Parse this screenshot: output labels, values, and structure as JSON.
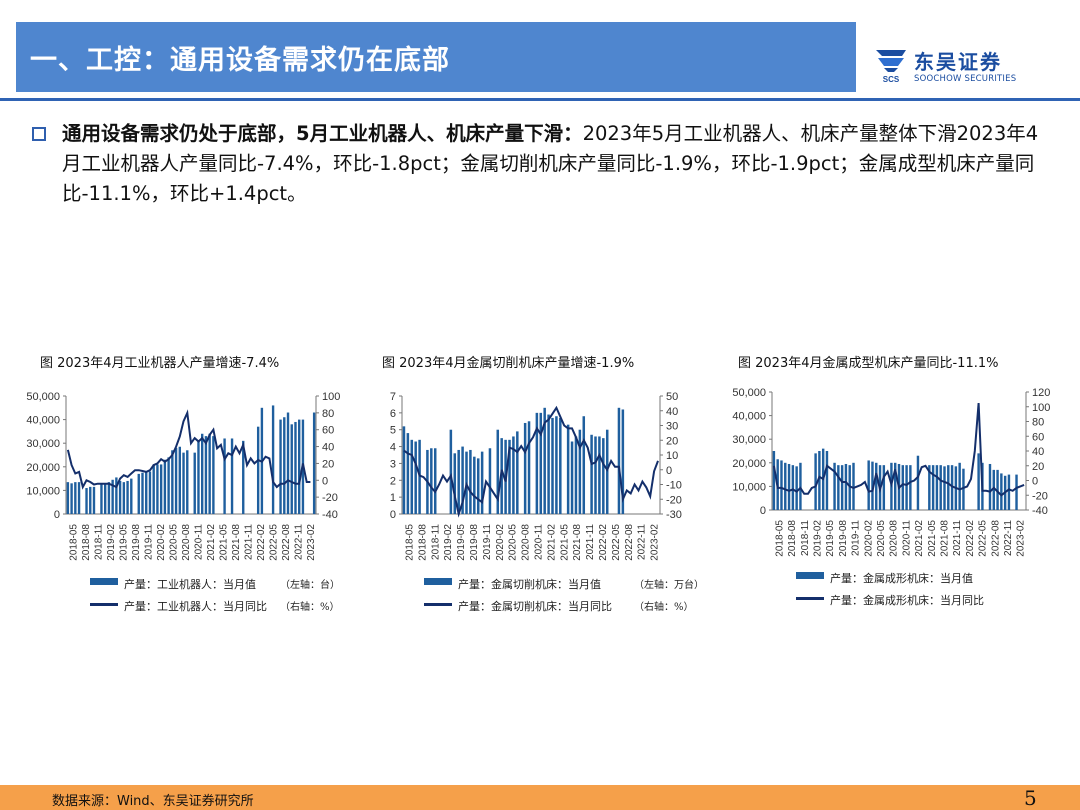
{
  "header": {
    "title": "一、工控：通用设备需求仍在底部",
    "logo_cn": "东吴证券",
    "logo_en": "SOOCHOW SECURITIES",
    "logo_mark": "SCS"
  },
  "bullet": {
    "bold": "通用设备需求仍处于底部，5月工业机器人、机床产量下滑：",
    "text": "2023年5月工业机器人、机床产量整体下滑2023年4月工业机器人产量同比-7.4%，环比-1.8pct；金属切削机床产量同比-1.9%，环比-1.9pct；金属成型机床产量同比-11.1%，环比+1.4pct。"
  },
  "footer": {
    "source": "数据来源：Wind、东吴证券研究所",
    "page": "5"
  },
  "colors": {
    "bar": "#1f5f9e",
    "line": "#142f6b",
    "title_bg": "#4f86cf",
    "footer_bg": "#f5a04a"
  },
  "chart_data": [
    {
      "type": "bar",
      "title": "图  2023年4月工业机器人产量增速-7.4%",
      "x_tick_labels": [
        "2018-05",
        "2018-08",
        "2018-11",
        "2019-02",
        "2019-05",
        "2019-08",
        "2019-11",
        "2020-02",
        "2020-05",
        "2020-08",
        "2020-11",
        "2021-02",
        "2021-05",
        "2021-08",
        "2021-11",
        "2022-02",
        "2022-05",
        "2022-08",
        "2022-11",
        "2023-02"
      ],
      "y_left": {
        "ticks": [
          "50,000",
          "40,000",
          "30,000",
          "20,000",
          "10,000",
          "0"
        ],
        "lim": [
          0,
          50000
        ]
      },
      "y_right": {
        "ticks": [
          "100",
          "80",
          "60",
          "40",
          "20",
          "0",
          "-20",
          "-40"
        ],
        "lim": [
          -40,
          100
        ]
      },
      "series": [
        {
          "name": "产量：工业机器人：当月值",
          "kind": "bar",
          "values": [
            13500,
            13000,
            13500,
            13500,
            null,
            11000,
            11500,
            11500,
            null,
            13000,
            13000,
            13500,
            14500,
            15500,
            14000,
            13500,
            14000,
            15000,
            null,
            17000,
            17500,
            18000,
            18000,
            21000,
            21000,
            21000,
            23000,
            24000,
            27000,
            28000,
            28500,
            26000,
            27000,
            null,
            26000,
            31000,
            34000,
            33000,
            34000,
            33000,
            null,
            null,
            32000,
            null,
            32000,
            null,
            null,
            31000,
            null,
            null,
            null,
            37000,
            45000,
            null,
            null,
            46000,
            null,
            40000,
            41000,
            43000,
            38000,
            39000,
            40000,
            40000,
            null,
            null,
            43000
          ]
        },
        {
          "name": "产量：工业机器人：当月同比",
          "kind": "line",
          "values": [
            36,
            18,
            8,
            10,
            -8,
            0,
            -2,
            -5,
            -4,
            -4,
            -4,
            -4,
            -6,
            -8,
            2,
            6,
            4,
            8,
            12,
            12,
            11,
            10,
            12,
            18,
            20,
            25,
            22,
            25,
            30,
            40,
            52,
            70,
            80,
            44,
            50,
            46,
            50,
            44,
            54,
            60,
            38,
            42,
            25,
            32,
            30,
            40,
            32,
            42,
            18,
            26,
            20,
            24,
            22,
            28,
            26,
            -2,
            -8,
            -4,
            -4,
            0,
            -2,
            -4,
            -4,
            20,
            -2,
            -2
          ]
        }
      ],
      "legend": [
        "产量：工业机器人：当月值",
        "产量：工业机器人：当月同比"
      ],
      "legend_notes": [
        "（左轴：台）",
        "（右轴：%）"
      ]
    },
    {
      "type": "bar",
      "title": "图  2023年4月金属切削机床产量增速-1.9%",
      "x_tick_labels": [
        "2018-05",
        "2018-08",
        "2018-11",
        "2019-02",
        "2019-05",
        "2019-08",
        "2019-11",
        "2020-02",
        "2020-05",
        "2020-08",
        "2020-11",
        "2021-02",
        "2021-05",
        "2021-08",
        "2021-11",
        "2022-02",
        "2022-05",
        "2022-08",
        "2022-11",
        "2023-02"
      ],
      "y_left": {
        "ticks": [
          "7",
          "6",
          "5",
          "4",
          "3",
          "2",
          "1",
          "0"
        ],
        "lim": [
          0,
          7
        ]
      },
      "y_right": {
        "ticks": [
          "50",
          "40",
          "30",
          "20",
          "10",
          "0",
          "-10",
          "-20",
          "-30"
        ],
        "lim": [
          -30,
          50
        ]
      },
      "series": [
        {
          "name": "产量：金属切削机床：当月值",
          "kind": "bar",
          "values": [
            5.2,
            4.8,
            4.4,
            4.3,
            4.4,
            null,
            3.8,
            3.9,
            3.9,
            null,
            null,
            null,
            5.0,
            3.6,
            3.8,
            4.0,
            3.7,
            3.8,
            3.4,
            3.3,
            3.7,
            null,
            3.9,
            null,
            5.0,
            4.5,
            4.4,
            4.4,
            4.6,
            4.9,
            null,
            5.4,
            5.5,
            null,
            6.0,
            6.0,
            6.3,
            5.9,
            5.7,
            5.8,
            5.7,
            null,
            5.3,
            4.3,
            4.6,
            5.0,
            5.8,
            null,
            4.7,
            4.6,
            4.6,
            4.5,
            5.0,
            null,
            null,
            6.3,
            6.2
          ]
        },
        {
          "name": "产量：金属切削机床：当月同比",
          "kind": "line",
          "values": [
            13,
            11,
            10,
            4,
            -4,
            -5,
            -8,
            -12,
            -15,
            -10,
            -4,
            -8,
            -4,
            -18,
            -30,
            -22,
            -10,
            -15,
            -18,
            -20,
            -22,
            -8,
            -12,
            -16,
            -20,
            0,
            -8,
            15,
            14,
            12,
            16,
            12,
            18,
            22,
            28,
            24,
            32,
            34,
            38,
            42,
            36,
            30,
            28,
            28,
            22,
            15,
            20,
            15,
            4,
            5,
            10,
            4,
            0,
            6,
            2,
            2,
            -20,
            -14,
            -16,
            -10,
            -14,
            -8,
            -12,
            -18,
            -1,
            6
          ]
        }
      ],
      "legend": [
        "产量：金属切削机床：当月值",
        "产量：金属切削机床：当月同比"
      ],
      "legend_notes": [
        "（左轴：万台）",
        "（右轴：%）"
      ]
    },
    {
      "type": "bar",
      "title": "图  2023年4月金属成型机床产量同比-11.1%",
      "x_tick_labels": [
        "2018-05",
        "2018-08",
        "2018-11",
        "2019-02",
        "2019-05",
        "2019-08",
        "2019-11",
        "2020-02",
        "2020-05",
        "2020-08",
        "2020-11",
        "2021-02",
        "2021-05",
        "2021-08",
        "2021-11",
        "2022-02",
        "2022-05",
        "2022-08",
        "2022-11",
        "2023-02"
      ],
      "y_left": {
        "ticks": [
          "50,000",
          "40,000",
          "30,000",
          "20,000",
          "10,000",
          "0"
        ],
        "lim": [
          0,
          50000
        ]
      },
      "y_right": {
        "ticks": [
          "120",
          "100",
          "80",
          "60",
          "40",
          "20",
          "0",
          "-20",
          "-40"
        ],
        "lim": [
          -40,
          120
        ]
      },
      "series": [
        {
          "name": "产量：金属成形机床：当月值",
          "kind": "bar",
          "values": [
            25000,
            21500,
            21000,
            20000,
            19500,
            19000,
            18500,
            20000,
            null,
            null,
            null,
            24000,
            25000,
            26000,
            25000,
            null,
            20000,
            19000,
            19000,
            19500,
            19000,
            20000,
            null,
            null,
            null,
            21000,
            20500,
            20000,
            19000,
            19000,
            null,
            20000,
            20000,
            19500,
            19000,
            19000,
            19000,
            null,
            23000,
            null,
            null,
            19000,
            19000,
            19000,
            19000,
            18500,
            19000,
            19000,
            18500,
            20000,
            17500,
            null,
            null,
            null,
            24000,
            20000,
            null,
            19500,
            17000,
            17000,
            15500,
            14500,
            15000,
            null,
            15000,
            null
          ]
        },
        {
          "name": "产量：金属成形机床：当月同比",
          "kind": "line",
          "values": [
            20,
            -10,
            -10,
            -12,
            -14,
            -12,
            -15,
            -10,
            -18,
            -18,
            -10,
            -8,
            5,
            2,
            20,
            16,
            12,
            5,
            -2,
            -2,
            -8,
            -10,
            -8,
            -6,
            -2,
            -15,
            -14,
            10,
            -12,
            5,
            12,
            -5,
            15,
            -10,
            -5,
            -6,
            -2,
            0,
            5,
            18,
            20,
            12,
            8,
            5,
            0,
            -2,
            -4,
            -8,
            -10,
            -12,
            -10,
            -8,
            2,
            40,
            105,
            -14,
            -14,
            -15,
            -10,
            -15,
            -20,
            -16,
            -12,
            -14,
            -10,
            -8,
            -6
          ]
        }
      ],
      "legend": [
        "产量：金属成形机床：当月值",
        "产量：金属成形机床：当月同比"
      ],
      "legend_notes": []
    }
  ]
}
